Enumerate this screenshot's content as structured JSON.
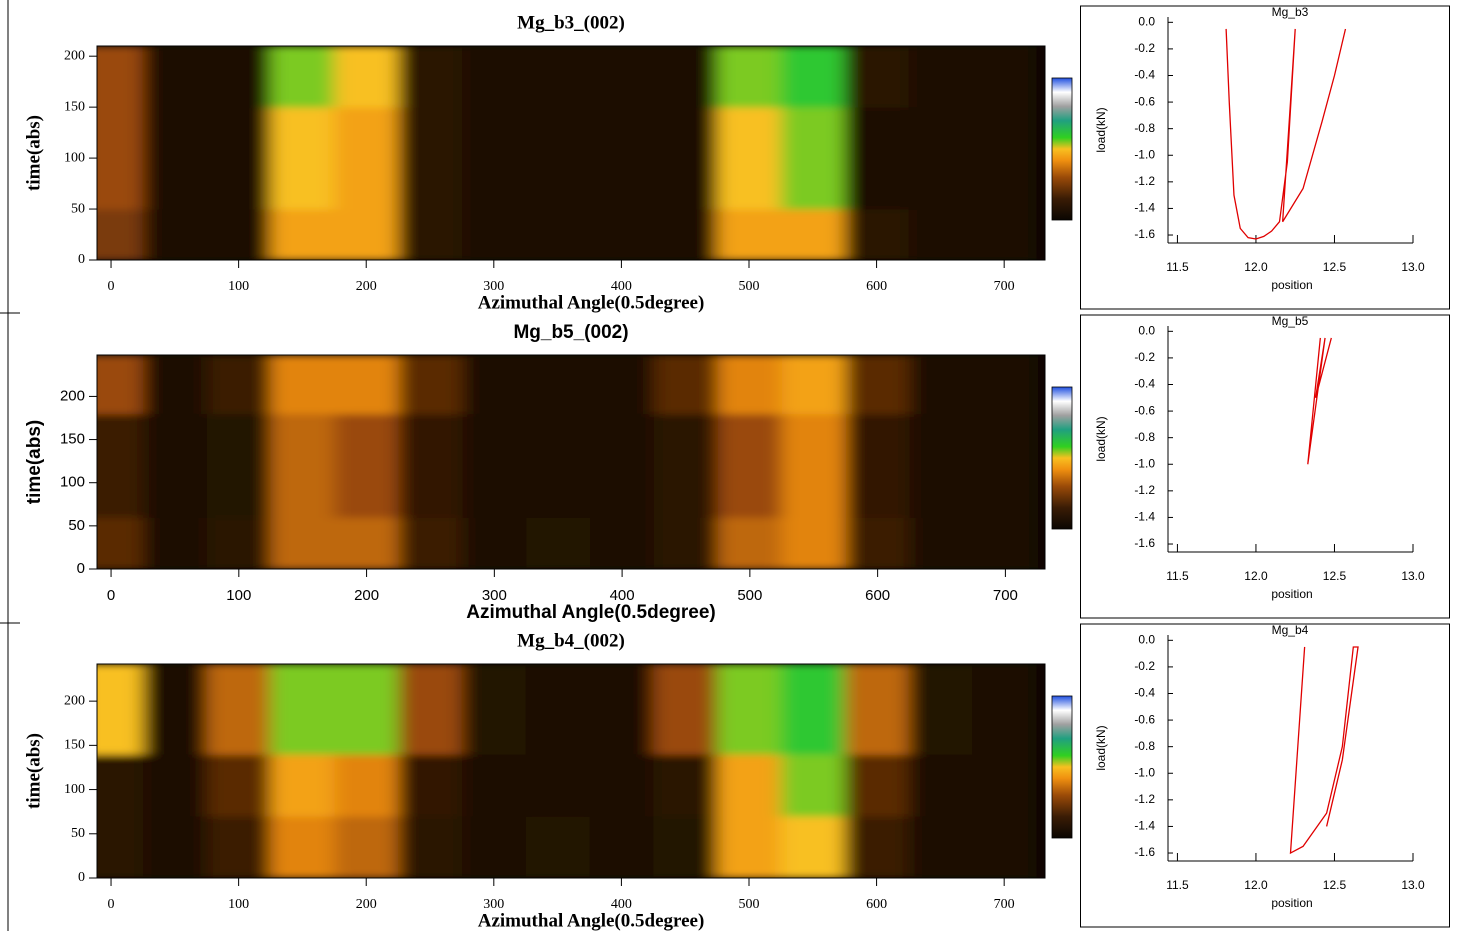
{
  "chart_data": [
    {
      "type": "heatmap",
      "title": "Mg_b3_(002)",
      "xlabel": "Azimuthal Angle(0.5degree)",
      "ylabel": "time(abs)",
      "xlim": [
        -11,
        732
      ],
      "ylim": [
        0,
        210
      ],
      "xticks": [
        0,
        100,
        200,
        300,
        400,
        500,
        600,
        700
      ],
      "yticks": [
        0,
        50,
        100,
        150,
        200
      ],
      "xbins": [
        -25,
        25,
        75,
        125,
        175,
        225,
        275,
        325,
        375,
        425,
        475,
        525,
        575,
        625,
        675,
        725
      ],
      "ybins": [
        0,
        50,
        100,
        150,
        210
      ],
      "z": [
        [
          0.25,
          0.05,
          0.05,
          0.45,
          0.45,
          0.1,
          0.05,
          0.05,
          0.05,
          0.05,
          0.45,
          0.45,
          0.1,
          0.05,
          0.05
        ],
        [
          0.3,
          0.05,
          0.05,
          0.5,
          0.45,
          0.1,
          0.05,
          0.05,
          0.05,
          0.05,
          0.5,
          0.55,
          0.05,
          0.05,
          0.05
        ],
        [
          0.3,
          0.05,
          0.05,
          0.5,
          0.45,
          0.1,
          0.05,
          0.05,
          0.05,
          0.05,
          0.5,
          0.55,
          0.05,
          0.05,
          0.05
        ],
        [
          0.3,
          0.05,
          0.05,
          0.55,
          0.5,
          0.1,
          0.05,
          0.05,
          0.05,
          0.05,
          0.55,
          0.6,
          0.1,
          0.05,
          0.05
        ]
      ]
    },
    {
      "type": "line",
      "title": "Mg_b3",
      "xlabel": "position",
      "ylabel": "load(kN)",
      "color": "#e00000",
      "xlim": [
        11.44,
        13.0
      ],
      "ylim": [
        -1.66,
        0.04
      ],
      "xticks": [
        11.5,
        {
          "value": 12,
          "label": "12.0"
        },
        12.5,
        {
          "value": 13,
          "label": "13.0"
        }
      ],
      "yticks": [
        {
          "value": 0,
          "label": "0.0"
        },
        -0.2,
        -0.4,
        -0.6,
        -0.8,
        {
          "value": -1,
          "label": "-1.0"
        },
        -1.2,
        -1.4,
        -1.6
      ],
      "x": [
        11.81,
        11.83,
        11.86,
        11.9,
        11.95,
        12.0,
        12.05,
        12.1,
        12.15,
        12.2,
        12.25,
        12.22,
        12.17,
        12.3,
        12.42,
        12.5,
        12.57
      ],
      "values": [
        -0.05,
        -0.6,
        -1.3,
        -1.55,
        -1.62,
        -1.63,
        -1.61,
        -1.57,
        -1.5,
        -1.05,
        -0.05,
        -0.6,
        -1.5,
        -1.25,
        -0.75,
        -0.4,
        -0.05
      ]
    },
    {
      "type": "heatmap",
      "title": "Mg_b5_(002)",
      "xlabel": "Azimuthal Angle(0.5degree)",
      "ylabel": "time(abs)",
      "xlim": [
        -11,
        731
      ],
      "ylim": [
        0,
        248
      ],
      "xticks": [
        0,
        100,
        200,
        300,
        400,
        500,
        600,
        700
      ],
      "yticks": [
        0,
        50,
        100,
        150,
        200
      ],
      "xbins": [
        -25,
        25,
        75,
        125,
        175,
        225,
        275,
        325,
        375,
        425,
        475,
        525,
        575,
        625,
        675,
        725
      ],
      "ybins": [
        0,
        60,
        120,
        180,
        248
      ],
      "z": [
        [
          0.2,
          0.05,
          0.1,
          0.35,
          0.35,
          0.15,
          0.05,
          0.08,
          0.05,
          0.1,
          0.35,
          0.4,
          0.15,
          0.05,
          0.05
        ],
        [
          0.15,
          0.05,
          0.08,
          0.35,
          0.3,
          0.12,
          0.05,
          0.05,
          0.05,
          0.1,
          0.3,
          0.4,
          0.12,
          0.05,
          0.05
        ],
        [
          0.15,
          0.05,
          0.08,
          0.35,
          0.3,
          0.12,
          0.05,
          0.05,
          0.05,
          0.1,
          0.3,
          0.4,
          0.12,
          0.05,
          0.05
        ],
        [
          0.3,
          0.05,
          0.15,
          0.4,
          0.4,
          0.2,
          0.05,
          0.05,
          0.05,
          0.2,
          0.4,
          0.45,
          0.2,
          0.05,
          0.05
        ]
      ]
    },
    {
      "type": "line",
      "title": "Mg_b5",
      "xlabel": "position",
      "ylabel": "load(kN)",
      "color": "#e00000",
      "xlim": [
        11.44,
        13.0
      ],
      "ylim": [
        -1.66,
        0.04
      ],
      "xticks": [
        11.5,
        {
          "value": 12,
          "label": "12.0"
        },
        12.5,
        {
          "value": 13,
          "label": "13.0"
        }
      ],
      "yticks": [
        {
          "value": 0,
          "label": "0.0"
        },
        -0.2,
        -0.4,
        -0.6,
        -0.8,
        {
          "value": -1,
          "label": "-1.0"
        },
        -1.2,
        -1.4,
        -1.6
      ],
      "x": [
        12.41,
        12.33,
        12.44,
        12.38,
        12.48
      ],
      "values": [
        -0.05,
        -1.0,
        -0.05,
        -0.5,
        -0.05
      ]
    },
    {
      "type": "heatmap",
      "title": "Mg_b4_(002)",
      "xlabel": "Azimuthal Angle(0.5degree)",
      "ylabel": "time(abs)",
      "xlim": [
        -11,
        732
      ],
      "ylim": [
        0,
        242
      ],
      "xticks": [
        0,
        100,
        200,
        300,
        400,
        500,
        600,
        700
      ],
      "yticks": [
        0,
        50,
        100,
        150,
        200
      ],
      "xbins": [
        -25,
        25,
        75,
        125,
        175,
        225,
        275,
        325,
        375,
        425,
        475,
        525,
        575,
        625,
        675,
        725
      ],
      "ybins": [
        0,
        70,
        140,
        242
      ],
      "z": [
        [
          0.1,
          0.05,
          0.15,
          0.4,
          0.35,
          0.1,
          0.05,
          0.08,
          0.05,
          0.08,
          0.45,
          0.5,
          0.15,
          0.05,
          0.05
        ],
        [
          0.1,
          0.05,
          0.2,
          0.45,
          0.4,
          0.12,
          0.05,
          0.05,
          0.05,
          0.1,
          0.45,
          0.55,
          0.2,
          0.05,
          0.05
        ],
        [
          0.5,
          0.05,
          0.35,
          0.55,
          0.55,
          0.3,
          0.08,
          0.05,
          0.05,
          0.3,
          0.55,
          0.6,
          0.35,
          0.08,
          0.05
        ]
      ]
    },
    {
      "type": "line",
      "title": "Mg_b4",
      "xlabel": "position",
      "ylabel": "load(kN)",
      "color": "#e00000",
      "xlim": [
        11.44,
        13.0
      ],
      "ylim": [
        -1.66,
        0.04
      ],
      "xticks": [
        11.5,
        {
          "value": 12,
          "label": "12.0"
        },
        12.5,
        {
          "value": 13,
          "label": "13.0"
        }
      ],
      "yticks": [
        {
          "value": 0,
          "label": "0.0"
        },
        -0.2,
        -0.4,
        -0.6,
        -0.8,
        {
          "value": -1,
          "label": "-1.0"
        },
        -1.2,
        -1.4,
        -1.6
      ],
      "x": [
        12.31,
        12.22,
        12.3,
        12.45,
        12.55,
        12.62,
        12.65,
        12.55,
        12.45
      ],
      "values": [
        -0.05,
        -1.6,
        -1.55,
        -1.3,
        -0.8,
        -0.05,
        -0.05,
        -0.9,
        -1.4
      ]
    }
  ]
}
